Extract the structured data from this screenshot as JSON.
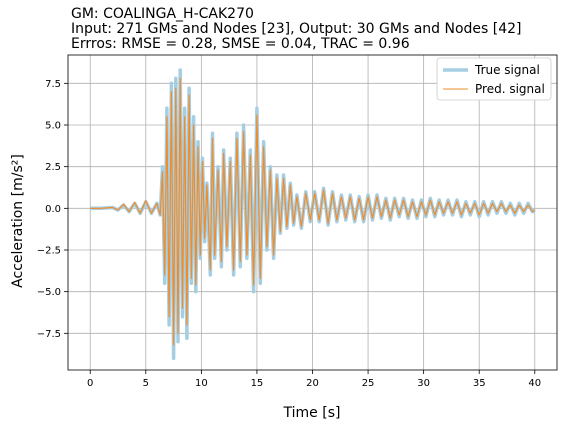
{
  "chart_data": {
    "type": "line",
    "title_lines": [
      "GM: COALINGA_H-CAK270",
      "Input: 271 GMs and Nodes [23], Output: 30 GMs and Nodes [42]",
      "Errros: RMSE = 0.28, SMSE = 0.04, TRAC = 0.96"
    ],
    "xlabel": "Time [s]",
    "ylabel": "Acceleration [m/s²]",
    "xlim": [
      -2,
      42
    ],
    "ylim": [
      -9.7,
      9.2
    ],
    "xticks": [
      0,
      5,
      10,
      15,
      20,
      25,
      30,
      35,
      40
    ],
    "xtick_labels": [
      "0",
      "5",
      "10",
      "15",
      "20",
      "25",
      "30",
      "35",
      "40"
    ],
    "yticks": [
      -7.5,
      -5.0,
      -2.5,
      0.0,
      2.5,
      5.0,
      7.5
    ],
    "ytick_labels": [
      "−7.5",
      "−5.0",
      "−2.5",
      "0.0",
      "2.5",
      "5.0",
      "7.5"
    ],
    "grid": true,
    "legend_position": "top-right",
    "series": [
      {
        "name": "True signal",
        "color": "#a6cee3",
        "points": [
          [
            0,
            0
          ],
          [
            1,
            0
          ],
          [
            2,
            0.05
          ],
          [
            2.5,
            -0.1
          ],
          [
            3,
            0.2
          ],
          [
            3.5,
            -0.2
          ],
          [
            4,
            0.3
          ],
          [
            4.5,
            -0.3
          ],
          [
            5,
            0.4
          ],
          [
            5.5,
            -0.3
          ],
          [
            6,
            0.3
          ],
          [
            6.3,
            -0.4
          ],
          [
            6.5,
            2.5
          ],
          [
            6.7,
            -4.5
          ],
          [
            6.9,
            6.0
          ],
          [
            7.1,
            -7.0
          ],
          [
            7.3,
            7.5
          ],
          [
            7.5,
            -9.0
          ],
          [
            7.7,
            7.8
          ],
          [
            7.9,
            -8.0
          ],
          [
            8.1,
            8.3
          ],
          [
            8.3,
            -6.5
          ],
          [
            8.5,
            6.0
          ],
          [
            8.7,
            -7.8
          ],
          [
            8.9,
            7.2
          ],
          [
            9.1,
            -4.5
          ],
          [
            9.3,
            5.5
          ],
          [
            9.5,
            -5.0
          ],
          [
            9.7,
            4.0
          ],
          [
            9.9,
            -3.0
          ],
          [
            10.1,
            3.0
          ],
          [
            10.3,
            -2.0
          ],
          [
            10.5,
            1.5
          ],
          [
            10.8,
            -4.0
          ],
          [
            11,
            4.5
          ],
          [
            11.2,
            -3.0
          ],
          [
            11.5,
            2.5
          ],
          [
            11.8,
            -3.5
          ],
          [
            12,
            3.5
          ],
          [
            12.3,
            -2.5
          ],
          [
            12.6,
            3.0
          ],
          [
            12.9,
            -4.0
          ],
          [
            13.2,
            4.5
          ],
          [
            13.5,
            -3.5
          ],
          [
            13.8,
            5.0
          ],
          [
            14.1,
            -3.0
          ],
          [
            14.4,
            3.5
          ],
          [
            14.7,
            -5.0
          ],
          [
            15,
            6.0
          ],
          [
            15.3,
            -4.5
          ],
          [
            15.6,
            4.0
          ],
          [
            15.9,
            -2.5
          ],
          [
            16.2,
            2.5
          ],
          [
            16.5,
            -3.0
          ],
          [
            16.8,
            2.0
          ],
          [
            17.1,
            -1.5
          ],
          [
            17.4,
            2.0
          ],
          [
            17.7,
            -1.2
          ],
          [
            18,
            1.5
          ],
          [
            18.3,
            -1.0
          ],
          [
            18.6,
            0.8
          ],
          [
            19,
            -1.2
          ],
          [
            19.4,
            1.0
          ],
          [
            19.8,
            -0.8
          ],
          [
            20.2,
            1.0
          ],
          [
            20.6,
            -0.8
          ],
          [
            21,
            1.2
          ],
          [
            21.4,
            -1.0
          ],
          [
            21.8,
            1.0
          ],
          [
            22.2,
            -0.8
          ],
          [
            22.6,
            0.8
          ],
          [
            23,
            -0.7
          ],
          [
            23.4,
            0.8
          ],
          [
            23.8,
            -0.8
          ],
          [
            24.2,
            0.7
          ],
          [
            24.6,
            -0.8
          ],
          [
            25,
            0.8
          ],
          [
            25.4,
            -0.7
          ],
          [
            25.8,
            0.8
          ],
          [
            26.2,
            -0.6
          ],
          [
            26.6,
            0.6
          ],
          [
            27,
            -0.7
          ],
          [
            27.4,
            0.6
          ],
          [
            27.8,
            -0.5
          ],
          [
            28.2,
            0.6
          ],
          [
            28.6,
            -0.6
          ],
          [
            29,
            0.5
          ],
          [
            29.4,
            -0.6
          ],
          [
            29.8,
            0.5
          ],
          [
            30.2,
            -0.5
          ],
          [
            30.6,
            0.6
          ],
          [
            31,
            -0.5
          ],
          [
            31.4,
            0.5
          ],
          [
            31.8,
            -0.4
          ],
          [
            32.2,
            0.5
          ],
          [
            32.6,
            -0.4
          ],
          [
            33,
            0.5
          ],
          [
            33.4,
            -0.5
          ],
          [
            33.8,
            0.4
          ],
          [
            34.2,
            -0.4
          ],
          [
            34.6,
            0.4
          ],
          [
            35,
            -0.5
          ],
          [
            35.4,
            0.4
          ],
          [
            35.8,
            -0.4
          ],
          [
            36.2,
            0.4
          ],
          [
            36.6,
            -0.3
          ],
          [
            37,
            0.4
          ],
          [
            37.4,
            -0.3
          ],
          [
            37.8,
            0.3
          ],
          [
            38.2,
            -0.4
          ],
          [
            38.6,
            0.3
          ],
          [
            39,
            -0.3
          ],
          [
            39.4,
            0.3
          ],
          [
            39.8,
            -0.2
          ],
          [
            40,
            -0.1
          ]
        ]
      },
      {
        "name": "Pred. signal",
        "color": "#f08c2a",
        "points": [
          [
            0,
            0
          ],
          [
            1,
            0
          ],
          [
            2,
            0.05
          ],
          [
            2.5,
            -0.1
          ],
          [
            3,
            0.25
          ],
          [
            3.5,
            -0.2
          ],
          [
            4,
            0.35
          ],
          [
            4.5,
            -0.3
          ],
          [
            5,
            0.45
          ],
          [
            5.5,
            -0.3
          ],
          [
            6,
            0.3
          ],
          [
            6.3,
            -0.4
          ],
          [
            6.5,
            2.2
          ],
          [
            6.7,
            -4.0
          ],
          [
            6.9,
            5.5
          ],
          [
            7.1,
            -6.5
          ],
          [
            7.3,
            7.0
          ],
          [
            7.5,
            -8.2
          ],
          [
            7.7,
            7.2
          ],
          [
            7.9,
            -7.5
          ],
          [
            8.1,
            7.8
          ],
          [
            8.3,
            -6.0
          ],
          [
            8.5,
            5.5
          ],
          [
            8.7,
            -7.0
          ],
          [
            8.9,
            6.8
          ],
          [
            9.1,
            -4.2
          ],
          [
            9.3,
            5.0
          ],
          [
            9.5,
            -4.6
          ],
          [
            9.7,
            3.7
          ],
          [
            9.9,
            -2.8
          ],
          [
            10.1,
            2.8
          ],
          [
            10.3,
            -1.8
          ],
          [
            10.5,
            1.4
          ],
          [
            10.8,
            -3.7
          ],
          [
            11,
            4.2
          ],
          [
            11.2,
            -2.8
          ],
          [
            11.5,
            2.3
          ],
          [
            11.8,
            -3.2
          ],
          [
            12,
            3.3
          ],
          [
            12.3,
            -2.3
          ],
          [
            12.6,
            2.8
          ],
          [
            12.9,
            -3.7
          ],
          [
            13.2,
            4.2
          ],
          [
            13.5,
            -3.2
          ],
          [
            13.8,
            4.6
          ],
          [
            14.1,
            -2.8
          ],
          [
            14.4,
            3.2
          ],
          [
            14.7,
            -4.6
          ],
          [
            15,
            5.6
          ],
          [
            15.3,
            -4.2
          ],
          [
            15.6,
            3.7
          ],
          [
            15.9,
            -2.3
          ],
          [
            16.2,
            2.3
          ],
          [
            16.5,
            -2.8
          ],
          [
            16.8,
            1.8
          ],
          [
            17.1,
            -1.4
          ],
          [
            17.4,
            1.8
          ],
          [
            17.7,
            -1.1
          ],
          [
            18,
            1.4
          ],
          [
            18.3,
            -0.9
          ],
          [
            18.6,
            0.7
          ],
          [
            19,
            -1.1
          ],
          [
            19.4,
            0.9
          ],
          [
            19.8,
            -0.7
          ],
          [
            20.2,
            0.9
          ],
          [
            20.6,
            -0.7
          ],
          [
            21,
            1.1
          ],
          [
            21.4,
            -0.9
          ],
          [
            21.8,
            0.9
          ],
          [
            22.2,
            -0.7
          ],
          [
            22.6,
            0.7
          ],
          [
            23,
            -0.6
          ],
          [
            23.4,
            0.7
          ],
          [
            23.8,
            -0.7
          ],
          [
            24.2,
            0.6
          ],
          [
            24.6,
            -0.7
          ],
          [
            25,
            0.7
          ],
          [
            25.4,
            -0.6
          ],
          [
            25.8,
            0.7
          ],
          [
            26.2,
            -0.5
          ],
          [
            26.6,
            0.5
          ],
          [
            27,
            -0.6
          ],
          [
            27.4,
            0.5
          ],
          [
            27.8,
            -0.4
          ],
          [
            28.2,
            0.5
          ],
          [
            28.6,
            -0.5
          ],
          [
            29,
            0.4
          ],
          [
            29.4,
            -0.5
          ],
          [
            29.8,
            0.4
          ],
          [
            30.2,
            -0.4
          ],
          [
            30.6,
            0.5
          ],
          [
            31,
            -0.4
          ],
          [
            31.4,
            0.4
          ],
          [
            31.8,
            -0.3
          ],
          [
            32.2,
            0.4
          ],
          [
            32.6,
            -0.3
          ],
          [
            33,
            0.4
          ],
          [
            33.4,
            -0.4
          ],
          [
            33.8,
            0.3
          ],
          [
            34.2,
            -0.3
          ],
          [
            34.6,
            0.3
          ],
          [
            35,
            -0.4
          ],
          [
            35.4,
            0.3
          ],
          [
            35.8,
            -0.3
          ],
          [
            36.2,
            0.3
          ],
          [
            36.6,
            -0.2
          ],
          [
            37,
            0.3
          ],
          [
            37.4,
            -0.2
          ],
          [
            37.8,
            0.2
          ],
          [
            38.2,
            -0.3
          ],
          [
            38.6,
            0.2
          ],
          [
            39,
            -0.2
          ],
          [
            39.4,
            0.2
          ],
          [
            39.8,
            -0.2
          ],
          [
            40,
            -0.1
          ]
        ]
      }
    ]
  }
}
